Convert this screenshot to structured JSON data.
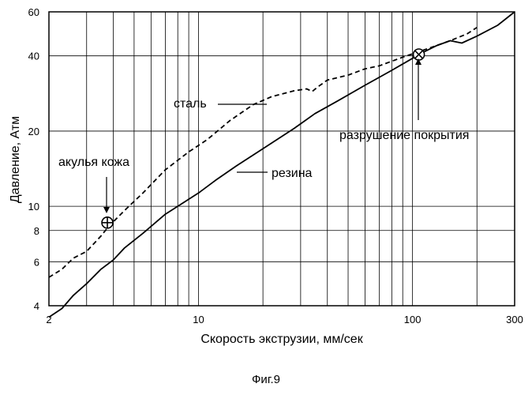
{
  "chart_data": {
    "type": "line",
    "xlabel": "Скорость экструзии, мм/сек",
    "ylabel": "Давление, Атм",
    "xscale": "log",
    "yscale": "log",
    "xlim": [
      2,
      300
    ],
    "ylim": [
      4,
      60
    ],
    "grid": true,
    "x_ticks": [
      2,
      10,
      100,
      300
    ],
    "x_tick_labels": [
      "2",
      "10",
      "100",
      "300"
    ],
    "y_ticks": [
      4,
      6,
      8,
      10,
      20,
      40,
      60
    ],
    "y_tick_labels": [
      "4",
      "6",
      "8",
      "10",
      "20",
      "40",
      "60"
    ],
    "series": [
      {
        "name": "сталь",
        "style": "dashed",
        "x": [
          2.0,
          2.3,
          2.6,
          3.0,
          3.5,
          3.8,
          4.5,
          5.5,
          7.0,
          9.0,
          11.0,
          14.0,
          18.0,
          22.0,
          28.0,
          32.0,
          34.0,
          36.0,
          40.0,
          50.0,
          60.0,
          70.0,
          90.0,
          120.0,
          150.0,
          180.0,
          200.0
        ],
        "y": [
          5.2,
          5.6,
          6.2,
          6.6,
          7.6,
          8.3,
          9.6,
          11.3,
          14.0,
          16.5,
          18.5,
          22.0,
          25.5,
          27.5,
          29.0,
          29.5,
          28.8,
          30.0,
          32.0,
          33.5,
          35.5,
          36.5,
          39.5,
          43.0,
          46.0,
          49.0,
          52.0
        ]
      },
      {
        "name": "резина",
        "style": "solid",
        "x": [
          2.0,
          2.3,
          2.6,
          3.0,
          3.5,
          4.0,
          4.5,
          5.5,
          7.0,
          8.0,
          10.0,
          12.0,
          15.0,
          20.0,
          28.0,
          35.0,
          45.0,
          60.0,
          80.0,
          110.0,
          130.0,
          150.0,
          170.0,
          200.0,
          250.0,
          300.0
        ],
        "y": [
          3.6,
          3.9,
          4.4,
          4.9,
          5.6,
          6.1,
          6.8,
          7.8,
          9.3,
          10.0,
          11.3,
          12.7,
          14.5,
          17.0,
          20.5,
          23.5,
          26.5,
          30.5,
          35.0,
          41.0,
          44.0,
          46.0,
          45.0,
          48.0,
          53.0,
          60.0
        ]
      }
    ],
    "markers": [
      {
        "label": "акулья кожа",
        "x": 3.75,
        "y": 8.6,
        "symbol": "circle-plus"
      },
      {
        "label": "разрушение покрытия",
        "x": 107,
        "y": 40.5,
        "symbol": "circle-x"
      }
    ],
    "annotations": [
      {
        "text": "сталь",
        "series": "сталь"
      },
      {
        "text": "резина",
        "series": "резина"
      },
      {
        "text": "акулья кожа",
        "marker": 0
      },
      {
        "text": "разрушение покрытия",
        "marker": 1
      }
    ]
  },
  "figure_caption": "Фиг.9"
}
